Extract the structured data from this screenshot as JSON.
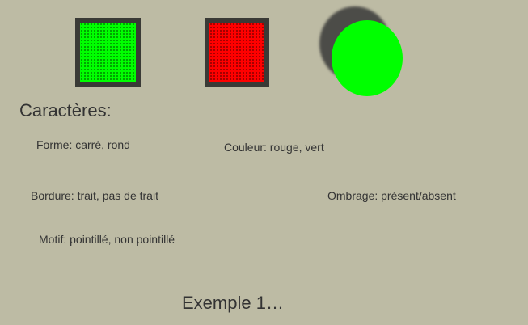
{
  "background_color": "#bdbba4",
  "shapes": [
    {
      "kind": "square",
      "fill": "#00ff00",
      "border": "#3a3a36",
      "pattern": "dotted",
      "shadow": false
    },
    {
      "kind": "square",
      "fill": "#ff0000",
      "border": "#3a3a36",
      "pattern": "dotted",
      "shadow": false
    },
    {
      "kind": "circle",
      "fill": "#00ff00",
      "border": "none",
      "pattern": "none",
      "shadow": true
    }
  ],
  "heading": "Caractères:",
  "features": {
    "forme": "Forme: carré, rond",
    "couleur": "Couleur: rouge, vert",
    "bordure": "Bordure: trait, pas de trait",
    "ombrage": "Ombrage: présent/absent",
    "motif": "Motif: pointillé, non pointillé"
  },
  "footer": "Exemple 1…"
}
